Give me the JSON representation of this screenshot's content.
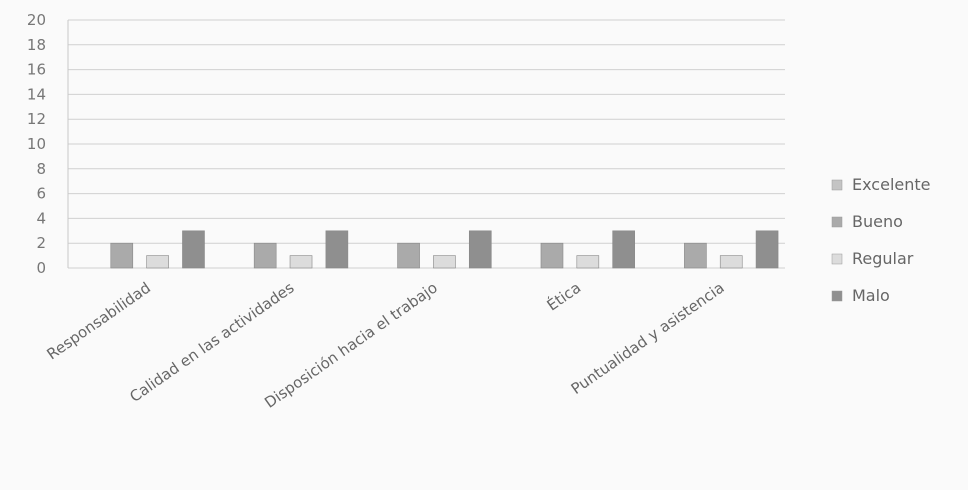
{
  "chart_data": {
    "type": "bar",
    "title": "",
    "xlabel": "",
    "ylabel": "",
    "ylim": [
      0,
      20
    ],
    "yticks": [
      "0",
      "2",
      "4",
      "6",
      "8",
      "10",
      "12",
      "14",
      "16",
      "18",
      "20"
    ],
    "grid": true,
    "legend_position": "right",
    "categories": [
      "Responsabilidad",
      "Calidad en las actividades",
      "Disposición hacia el trabajo",
      "Ética",
      "Puntualidad y asistencia"
    ],
    "series": [
      {
        "name": "Excelente",
        "color": "#c4c4c4",
        "values": [
          0,
          0,
          0,
          0,
          0
        ]
      },
      {
        "name": "Bueno",
        "color": "#aaaaaa",
        "values": [
          2,
          2,
          2,
          2,
          2
        ]
      },
      {
        "name": "Regular",
        "color": "#dcdcdc",
        "values": [
          1,
          1,
          1,
          1,
          1
        ]
      },
      {
        "name": "Malo",
        "color": "#8f8f8f",
        "values": [
          3,
          3,
          3,
          3,
          3
        ]
      }
    ]
  }
}
